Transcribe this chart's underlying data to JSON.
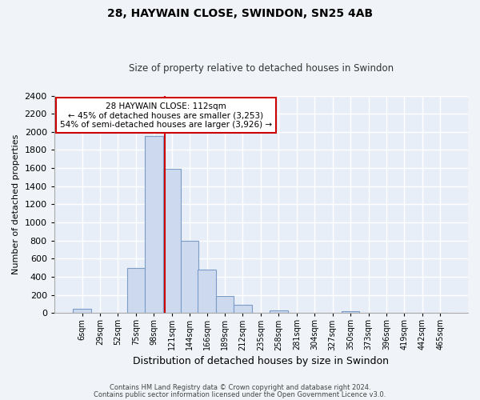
{
  "title1": "28, HAYWAIN CLOSE, SWINDON, SN25 4AB",
  "title2": "Size of property relative to detached houses in Swindon",
  "xlabel": "Distribution of detached houses by size in Swindon",
  "ylabel": "Number of detached properties",
  "footnote1": "Contains HM Land Registry data © Crown copyright and database right 2024.",
  "footnote2": "Contains public sector information licensed under the Open Government Licence v3.0.",
  "bar_labels": [
    "6sqm",
    "29sqm",
    "52sqm",
    "75sqm",
    "98sqm",
    "121sqm",
    "144sqm",
    "166sqm",
    "189sqm",
    "212sqm",
    "235sqm",
    "258sqm",
    "281sqm",
    "304sqm",
    "327sqm",
    "350sqm",
    "373sqm",
    "396sqm",
    "419sqm",
    "442sqm",
    "465sqm"
  ],
  "bar_values": [
    50,
    0,
    0,
    500,
    1950,
    1590,
    800,
    480,
    185,
    90,
    0,
    30,
    0,
    0,
    0,
    20,
    0,
    0,
    0,
    0,
    0
  ],
  "bar_color": "#cdd9ee",
  "bar_edge_color": "#7a9cc8",
  "annotation_title": "28 HAYWAIN CLOSE: 112sqm",
  "annotation_line1": "← 45% of detached houses are smaller (3,253)",
  "annotation_line2": "54% of semi-detached houses are larger (3,926) →",
  "property_line_x": 112,
  "ylim": [
    0,
    2400
  ],
  "yticks": [
    0,
    200,
    400,
    600,
    800,
    1000,
    1200,
    1400,
    1600,
    1800,
    2000,
    2200,
    2400
  ],
  "background_color": "#f0f4f8",
  "plot_bg_color": "#e8eef8",
  "grid_color": "#ffffff",
  "annotation_box_color": "#ffffff",
  "annotation_box_edge": "#cc0000",
  "property_line_color": "#cc0000",
  "title1_fontsize": 10,
  "title2_fontsize": 8.5,
  "xlabel_fontsize": 9,
  "ylabel_fontsize": 8,
  "tick_fontsize": 8,
  "footnote_fontsize": 6
}
